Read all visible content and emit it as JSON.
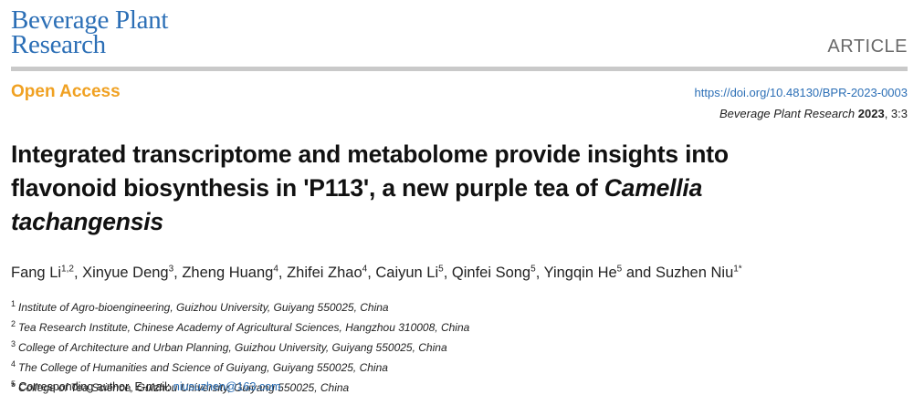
{
  "journal": {
    "logo_line1": "Beverage Plant",
    "logo_line2": "Research"
  },
  "article_type": "ARTICLE",
  "open_access": "Open Access",
  "doi": "https://doi.org/10.48130/BPR-2023-0003",
  "citation": {
    "journal": "Beverage Plant Research",
    "year": "2023",
    "rest": ", 3:3"
  },
  "title": {
    "line1": "Integrated transcriptome and metabolome provide insights into",
    "line2_plain": "flavonoid biosynthesis in 'P113', a new purple tea of ",
    "italic1": "Camellia",
    "italic2": "tachangensis"
  },
  "authors": [
    {
      "name": "Fang Li",
      "sup": "1,2",
      "sep": ", "
    },
    {
      "name": "Xinyue Deng",
      "sup": "3",
      "sep": ", "
    },
    {
      "name": "Zheng Huang",
      "sup": "4",
      "sep": ", "
    },
    {
      "name": "Zhifei Zhao",
      "sup": "4",
      "sep": ", "
    },
    {
      "name": "Caiyun Li",
      "sup": "5",
      "sep": ", "
    },
    {
      "name": "Qinfei Song",
      "sup": "5",
      "sep": ", "
    },
    {
      "name": "Yingqin He",
      "sup": "5",
      "sep": " and "
    },
    {
      "name": "Suzhen Niu",
      "sup": "1*",
      "sep": ""
    }
  ],
  "affiliations": [
    {
      "num": "1",
      "text": "Institute of Agro-bioengineering, Guizhou University, Guiyang 550025, China"
    },
    {
      "num": "2",
      "text": "Tea Research Institute, Chinese Academy of Agricultural Sciences, Hangzhou 310008, China"
    },
    {
      "num": "3",
      "text": "College of Architecture and Urban Planning, Guizhou University, Guiyang 550025, China"
    },
    {
      "num": "4",
      "text": "The College of Humanities and Science of Guiyang, Guiyang 550025, China"
    },
    {
      "num": "5",
      "text": "College of Tea Science, Guizhou University, Guiyang 550025, China"
    }
  ],
  "corresponding": {
    "label": "* Corresponding author, E-mail: ",
    "email": "niusuzhen@163.com"
  }
}
